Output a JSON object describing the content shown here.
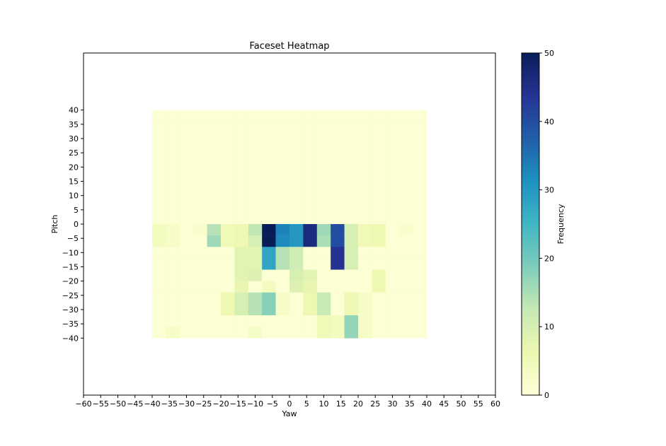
{
  "chart_data": {
    "type": "heatmap",
    "title": "Faceset Heatmap",
    "xlabel": "Yaw",
    "ylabel": "Pitch",
    "xlim": [
      -60,
      60
    ],
    "ylim": [
      -60,
      60
    ],
    "x_ticks": [
      -60,
      -55,
      -50,
      -45,
      -40,
      -35,
      -30,
      -25,
      -20,
      -15,
      -10,
      -5,
      0,
      5,
      10,
      15,
      20,
      25,
      30,
      35,
      40,
      45,
      50,
      55,
      60
    ],
    "y_ticks": [
      40,
      35,
      30,
      25,
      20,
      15,
      10,
      5,
      0,
      -5,
      -10,
      -15,
      -20,
      -25,
      -30,
      -35,
      -40
    ],
    "colormap": "YlGnBu",
    "colorbar": {
      "label": "Frequency",
      "min": 0,
      "max": 50,
      "ticks": [
        0,
        10,
        20,
        30,
        40,
        50
      ]
    },
    "bins": {
      "yaw_range": [
        -40,
        40
      ],
      "pitch_range": [
        -40,
        40
      ],
      "bin_size": 4,
      "default_value": 1
    },
    "cells": [
      {
        "yaw": -40,
        "pitch": -2,
        "value": 4
      },
      {
        "yaw": -36,
        "pitch": -2,
        "value": 3
      },
      {
        "yaw": -28,
        "pitch": -2,
        "value": 2
      },
      {
        "yaw": -24,
        "pitch": -2,
        "value": 14
      },
      {
        "yaw": -20,
        "pitch": -2,
        "value": 5
      },
      {
        "yaw": -16,
        "pitch": -2,
        "value": 6
      },
      {
        "yaw": -12,
        "pitch": -2,
        "value": 13
      },
      {
        "yaw": -8,
        "pitch": -2,
        "value": 50
      },
      {
        "yaw": -4,
        "pitch": -2,
        "value": 33
      },
      {
        "yaw": 0,
        "pitch": -2,
        "value": 30
      },
      {
        "yaw": 4,
        "pitch": -2,
        "value": 46
      },
      {
        "yaw": 8,
        "pitch": -2,
        "value": 16
      },
      {
        "yaw": 12,
        "pitch": -2,
        "value": 40
      },
      {
        "yaw": 16,
        "pitch": -2,
        "value": 10
      },
      {
        "yaw": 20,
        "pitch": -2,
        "value": 5
      },
      {
        "yaw": 24,
        "pitch": -2,
        "value": 6
      },
      {
        "yaw": 32,
        "pitch": -2,
        "value": 2
      },
      {
        "yaw": -40,
        "pitch": -6,
        "value": 4
      },
      {
        "yaw": -36,
        "pitch": -6,
        "value": 3
      },
      {
        "yaw": -24,
        "pitch": -6,
        "value": 16
      },
      {
        "yaw": -20,
        "pitch": -6,
        "value": 5
      },
      {
        "yaw": -16,
        "pitch": -6,
        "value": 6
      },
      {
        "yaw": -12,
        "pitch": -6,
        "value": 10
      },
      {
        "yaw": -8,
        "pitch": -6,
        "value": 50
      },
      {
        "yaw": -4,
        "pitch": -6,
        "value": 32
      },
      {
        "yaw": 0,
        "pitch": -6,
        "value": 30
      },
      {
        "yaw": 4,
        "pitch": -6,
        "value": 46
      },
      {
        "yaw": 8,
        "pitch": -6,
        "value": 15
      },
      {
        "yaw": 12,
        "pitch": -6,
        "value": 40
      },
      {
        "yaw": 16,
        "pitch": -6,
        "value": 10
      },
      {
        "yaw": 20,
        "pitch": -6,
        "value": 5
      },
      {
        "yaw": 24,
        "pitch": -6,
        "value": 6
      },
      {
        "yaw": -16,
        "pitch": -10,
        "value": 8
      },
      {
        "yaw": -12,
        "pitch": -10,
        "value": 8
      },
      {
        "yaw": -8,
        "pitch": -10,
        "value": 28
      },
      {
        "yaw": -4,
        "pitch": -10,
        "value": 14
      },
      {
        "yaw": 0,
        "pitch": -10,
        "value": 11
      },
      {
        "yaw": 12,
        "pitch": -10,
        "value": 44
      },
      {
        "yaw": 16,
        "pitch": -10,
        "value": 10
      },
      {
        "yaw": -16,
        "pitch": -14,
        "value": 8
      },
      {
        "yaw": -12,
        "pitch": -14,
        "value": 8
      },
      {
        "yaw": -8,
        "pitch": -14,
        "value": 28
      },
      {
        "yaw": -4,
        "pitch": -14,
        "value": 14
      },
      {
        "yaw": 0,
        "pitch": -14,
        "value": 11
      },
      {
        "yaw": 12,
        "pitch": -14,
        "value": 44
      },
      {
        "yaw": 16,
        "pitch": -14,
        "value": 10
      },
      {
        "yaw": -16,
        "pitch": -18,
        "value": 8
      },
      {
        "yaw": -12,
        "pitch": -18,
        "value": 9
      },
      {
        "yaw": 0,
        "pitch": -18,
        "value": 10
      },
      {
        "yaw": 4,
        "pitch": -18,
        "value": 8
      },
      {
        "yaw": 24,
        "pitch": -18,
        "value": 6
      },
      {
        "yaw": -16,
        "pitch": -22,
        "value": 7
      },
      {
        "yaw": -8,
        "pitch": -22,
        "value": 4
      },
      {
        "yaw": 0,
        "pitch": -22,
        "value": 9
      },
      {
        "yaw": 4,
        "pitch": -22,
        "value": 7
      },
      {
        "yaw": 24,
        "pitch": -22,
        "value": 6
      },
      {
        "yaw": -20,
        "pitch": -26,
        "value": 6
      },
      {
        "yaw": -16,
        "pitch": -26,
        "value": 10
      },
      {
        "yaw": -12,
        "pitch": -26,
        "value": 14
      },
      {
        "yaw": -8,
        "pitch": -26,
        "value": 18
      },
      {
        "yaw": -4,
        "pitch": -26,
        "value": 3
      },
      {
        "yaw": 4,
        "pitch": -26,
        "value": 6
      },
      {
        "yaw": 8,
        "pitch": -26,
        "value": 12
      },
      {
        "yaw": 16,
        "pitch": -26,
        "value": 6
      },
      {
        "yaw": 20,
        "pitch": -26,
        "value": 3
      },
      {
        "yaw": -20,
        "pitch": -30,
        "value": 6
      },
      {
        "yaw": -16,
        "pitch": -30,
        "value": 10
      },
      {
        "yaw": -12,
        "pitch": -30,
        "value": 14
      },
      {
        "yaw": -8,
        "pitch": -30,
        "value": 18
      },
      {
        "yaw": -4,
        "pitch": -30,
        "value": 3
      },
      {
        "yaw": 4,
        "pitch": -30,
        "value": 6
      },
      {
        "yaw": 8,
        "pitch": -30,
        "value": 12
      },
      {
        "yaw": 16,
        "pitch": -30,
        "value": 6
      },
      {
        "yaw": 20,
        "pitch": -30,
        "value": 3
      },
      {
        "yaw": 8,
        "pitch": -34,
        "value": 5
      },
      {
        "yaw": 12,
        "pitch": -34,
        "value": 4
      },
      {
        "yaw": 16,
        "pitch": -34,
        "value": 17
      },
      {
        "yaw": 20,
        "pitch": -34,
        "value": 3
      },
      {
        "yaw": 8,
        "pitch": -38,
        "value": 5
      },
      {
        "yaw": 12,
        "pitch": -38,
        "value": 4
      },
      {
        "yaw": 16,
        "pitch": -38,
        "value": 17
      },
      {
        "yaw": 20,
        "pitch": -38,
        "value": 3
      },
      {
        "yaw": -36,
        "pitch": -38,
        "value": 3
      },
      {
        "yaw": -12,
        "pitch": -38,
        "value": 3
      }
    ]
  }
}
